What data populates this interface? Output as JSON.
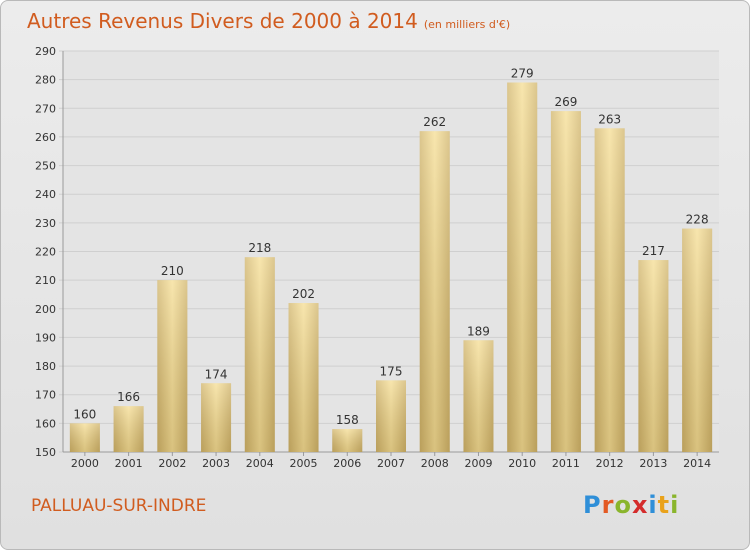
{
  "header": {
    "title": "Autres Revenus Divers de 2000 à 2014",
    "subtitle": "(en milliers d'€)"
  },
  "footer": {
    "place": "PALLUAU-SUR-INDRE",
    "logo_letters": [
      "P",
      "r",
      "o",
      "x",
      "i",
      "t",
      "i"
    ],
    "logo_colors": [
      "#2f8fd8",
      "#e35a24",
      "#8ab52c",
      "#d42b2b",
      "#2f8fd8",
      "#e9a21b",
      "#8ab52c"
    ]
  },
  "chart_data": {
    "type": "bar",
    "title": "Autres Revenus Divers de 2000 à 2014",
    "subtitle": "(en milliers d'€)",
    "categories": [
      "2000",
      "2001",
      "2002",
      "2003",
      "2004",
      "2005",
      "2006",
      "2007",
      "2008",
      "2009",
      "2010",
      "2011",
      "2012",
      "2013",
      "2014"
    ],
    "values": [
      160,
      166,
      210,
      174,
      218,
      202,
      158,
      175,
      262,
      189,
      279,
      269,
      263,
      217,
      228
    ],
    "ylim": [
      150,
      290
    ],
    "yticks": [
      150,
      160,
      170,
      180,
      190,
      200,
      210,
      220,
      230,
      240,
      250,
      260,
      270,
      280,
      290
    ],
    "grid": true,
    "colors": {
      "bar_light": "#f4dd98",
      "bar_dark": "#c9ad68",
      "grid": "#cfcfcf",
      "accent": "#d15c1f"
    }
  }
}
